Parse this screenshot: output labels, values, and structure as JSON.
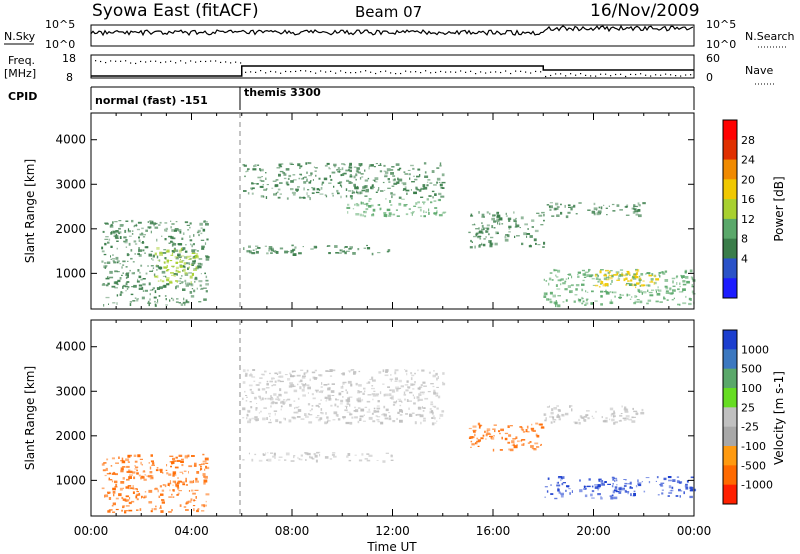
{
  "header": {
    "station": "Syowa East (fitACF)",
    "beam": "Beam 07",
    "date": "16/Nov/2009"
  },
  "noise_panel": {
    "left_label": "N.Sky",
    "left_ticks": [
      "10^5",
      "10^0"
    ],
    "right_label": "N.Search",
    "right_ticks": [
      "10^5",
      "10^0"
    ]
  },
  "freq_panel": {
    "label_line1": "Freq.",
    "label_line2": "[MHz]",
    "left_ticks": [
      "18",
      "8"
    ],
    "right_label": "Nave",
    "right_ticks": [
      "60",
      "0"
    ]
  },
  "cpid": {
    "label": "CPID",
    "segments": [
      {
        "name": "normal (fast) -151",
        "start_hour": 0,
        "end_hour": 6
      },
      {
        "name": "themis 3300",
        "start_hour": 6,
        "end_hour": 24
      }
    ]
  },
  "power_colorbar": {
    "label": "Power [dB]",
    "ticks": [
      "28",
      "24",
      "20",
      "16",
      "12",
      "8",
      "4"
    ]
  },
  "velocity_colorbar": {
    "label": "Velocity [m s-1]",
    "ticks": [
      "1000",
      "500",
      "100",
      "25",
      "-25",
      "-100",
      "-500",
      "-1000"
    ]
  },
  "axes": {
    "ylabel": "Slant Range [km]",
    "yticks": [
      "4000",
      "3000",
      "2000",
      "1000"
    ],
    "xlabel": "Time UT",
    "xticks": [
      "00:00",
      "04:00",
      "08:00",
      "12:00",
      "16:00",
      "20:00",
      "00:00"
    ]
  },
  "chart_data": [
    {
      "type": "heatmap",
      "title": "",
      "xlabel": "Time UT",
      "ylabel": "Slant Range [km]",
      "xlim": [
        0,
        24
      ],
      "ylim": [
        200,
        4600
      ],
      "colorbar": {
        "label": "Power [dB]",
        "range": [
          0,
          30
        ]
      },
      "regions": [
        {
          "t": [
            0.4,
            4.6
          ],
          "r": [
            300,
            2200
          ],
          "value": 8
        },
        {
          "t": [
            2.5,
            4.2
          ],
          "r": [
            800,
            1600
          ],
          "value": 16
        },
        {
          "t": [
            6.0,
            12.0
          ],
          "r": [
            1450,
            1650
          ],
          "value": 8
        },
        {
          "t": [
            6.0,
            14.0
          ],
          "r": [
            2700,
            3500
          ],
          "value": 8
        },
        {
          "t": [
            10.0,
            14.0
          ],
          "r": [
            2300,
            2700
          ],
          "value": 12
        },
        {
          "t": [
            15.0,
            18.0
          ],
          "r": [
            1600,
            2400
          ],
          "value": 8
        },
        {
          "t": [
            18.0,
            22.0
          ],
          "r": [
            2300,
            2600
          ],
          "value": 8
        },
        {
          "t": [
            18.0,
            24.0
          ],
          "r": [
            300,
            1100
          ],
          "value": 12
        },
        {
          "t": [
            20.0,
            22.5
          ],
          "r": [
            700,
            1100
          ],
          "value": 20
        }
      ]
    },
    {
      "type": "heatmap",
      "title": "",
      "xlabel": "Time UT",
      "ylabel": "Slant Range [km]",
      "xlim": [
        0,
        24
      ],
      "ylim": [
        200,
        4600
      ],
      "colorbar": {
        "label": "Velocity [m s-1]",
        "range": [
          -1000,
          1000
        ]
      },
      "regions": [
        {
          "t": [
            0.4,
            4.6
          ],
          "r": [
            300,
            1600
          ],
          "value": -100
        },
        {
          "t": [
            6.0,
            12.0
          ],
          "r": [
            1450,
            1650
          ],
          "value": 0
        },
        {
          "t": [
            6.0,
            14.0
          ],
          "r": [
            2300,
            3500
          ],
          "value": 0
        },
        {
          "t": [
            15.0,
            18.0
          ],
          "r": [
            1700,
            2300
          ],
          "value": -100
        },
        {
          "t": [
            18.0,
            22.0
          ],
          "r": [
            2300,
            2700
          ],
          "value": 0
        },
        {
          "t": [
            18.0,
            24.0
          ],
          "r": [
            600,
            1100
          ],
          "value": 500
        }
      ]
    }
  ]
}
